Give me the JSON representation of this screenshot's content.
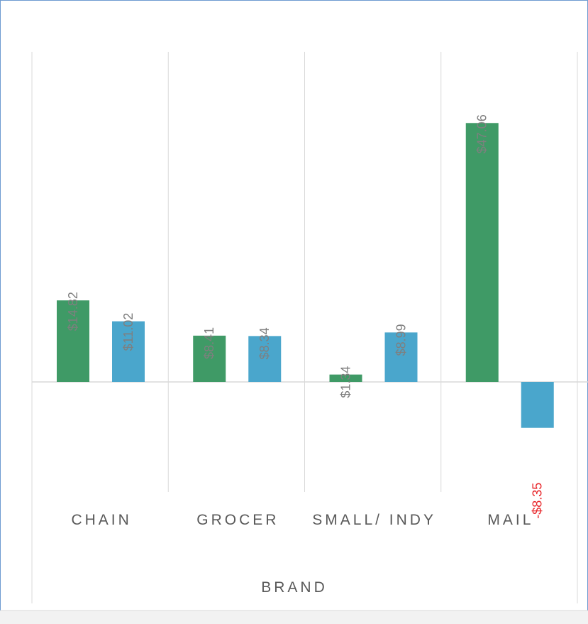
{
  "chart_data": {
    "type": "bar",
    "categories": [
      "CHAIN",
      "GROCER",
      "SMALL/ INDY",
      "MAIL"
    ],
    "xlabel": "BRAND",
    "series": [
      {
        "color": "#3f9a66",
        "values": [
          14.82,
          8.41,
          1.34,
          47.06
        ],
        "value_labels": [
          "$14.82",
          "$8.41",
          "$1.34",
          "$47.06"
        ]
      },
      {
        "color": "#4aa6cc",
        "values": [
          11.02,
          8.34,
          8.99,
          -8.35
        ],
        "value_labels": [
          "$11.02",
          "$8.34",
          "$8.99",
          "-$8.35"
        ]
      }
    ],
    "ylim": [
      -20,
      60
    ],
    "label_color": "#7f7f7f",
    "negative_label_color": "#e8262a"
  }
}
